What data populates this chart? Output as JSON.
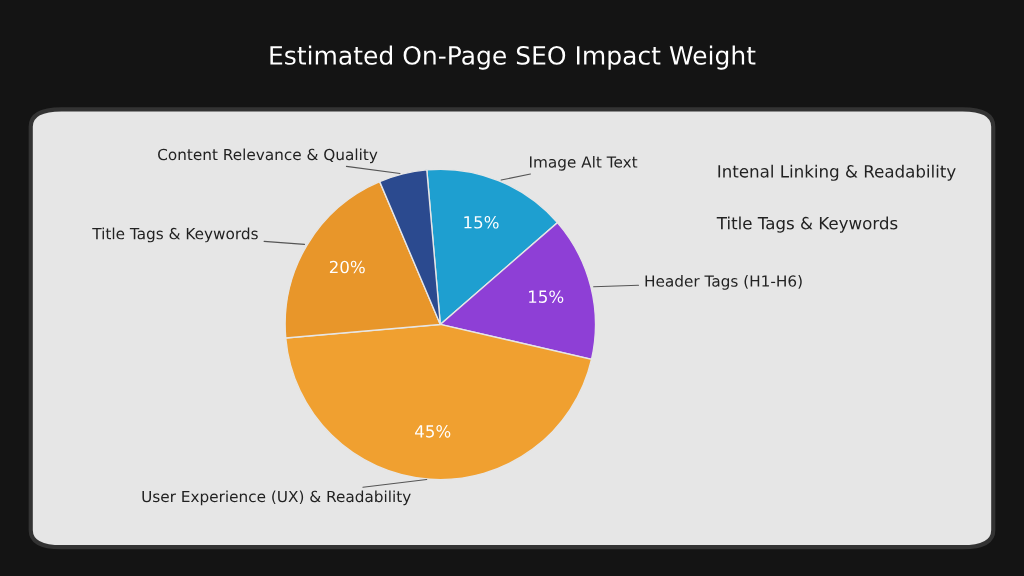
{
  "chart_data": {
    "type": "pie",
    "title": "Estimated On-Page SEO Impact Weight",
    "categories": [
      "Image Alt Text",
      "Header Tags (H1-H6)",
      "User Experience (UX) & Readability",
      "Title Tags & Keywords",
      "Content Relevance & Quality"
    ],
    "values": [
      15,
      15,
      45,
      20,
      5
    ],
    "value_labels": [
      "15%",
      "15%",
      "45%",
      "20%",
      null
    ],
    "colors": [
      "#1e9fd0",
      "#8e3fd6",
      "#f0a030",
      "#e8962a",
      "#2b4a8f"
    ],
    "annotations": [
      "Intenal Linking & Readability",
      "Title Tags & Keywords"
    ]
  }
}
